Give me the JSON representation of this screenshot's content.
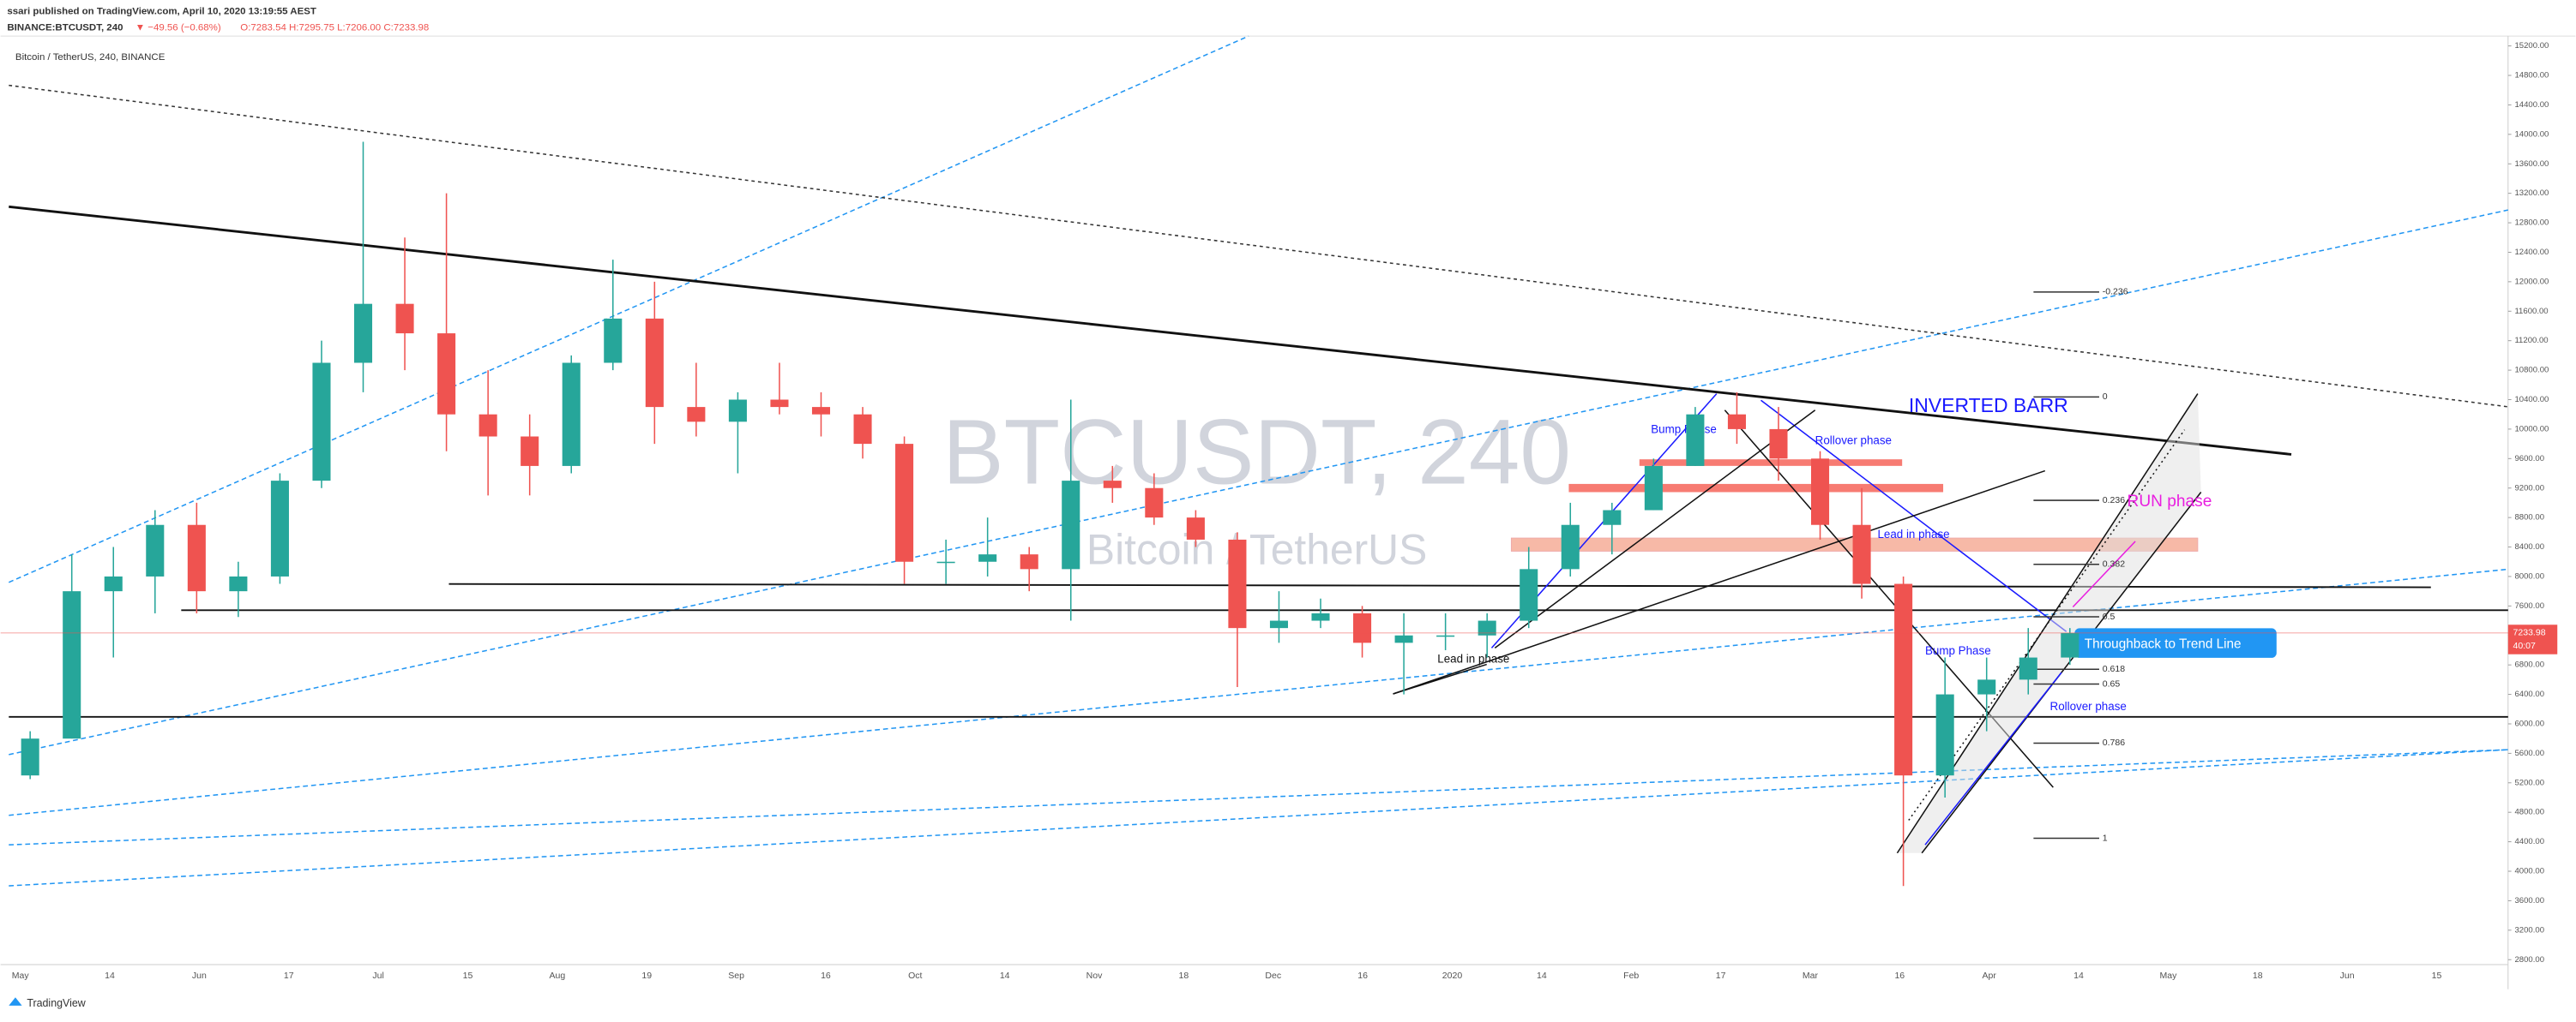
{
  "header": {
    "publisher": "ssari published on TradingView.com, April 10, 2020 13:19:55 AEST",
    "symbol": "BINANCE:BTCUSDT, 240",
    "change": "▼ −49.56 (−0.68%)",
    "ohlc": "O:7283.54 H:7295.75 L:7206.00 C:7233.98"
  },
  "chart_data": {
    "type": "candlestick",
    "title": "Bitcoin / TetherUS, 240, BINANCE",
    "watermark": "BTCUSDT, 240",
    "watermark_subtitle": "Bitcoin / TetherUS",
    "open": [
      5300,
      5800,
      7800,
      8000,
      8700,
      7800,
      8000,
      9300,
      10900,
      11700,
      11300,
      10200,
      9900,
      9500,
      10900,
      11500,
      10300,
      10100,
      10400,
      10300,
      10200,
      9800,
      8200,
      8200,
      8300,
      8100,
      9300,
      9200,
      8800,
      8500,
      7300,
      7400,
      7500,
      7100,
      7200,
      7200,
      7400,
      8100,
      8700,
      8900,
      9500,
      10200,
      10000,
      9600,
      8700,
      7900,
      5300,
      6400,
      6600,
      6900
    ],
    "high": [
      5900,
      8300,
      8400,
      8900,
      9000,
      8200,
      9400,
      11200,
      13900,
      12600,
      13200,
      10800,
      10200,
      11000,
      12300,
      12000,
      10900,
      10500,
      10900,
      10500,
      10300,
      9900,
      8500,
      8800,
      8400,
      10400,
      9500,
      9400,
      8900,
      8600,
      7800,
      7700,
      7600,
      7500,
      7500,
      7500,
      8400,
      9000,
      9000,
      9600,
      10300,
      10500,
      10300,
      9700,
      9200,
      8000,
      6900,
      6900,
      7300,
      7300
    ],
    "low": [
      5250,
      5800,
      6900,
      7500,
      7500,
      7450,
      7900,
      9200,
      10500,
      10800,
      9700,
      9100,
      9100,
      9400,
      10800,
      9800,
      9900,
      9400,
      10200,
      9900,
      9600,
      7900,
      7900,
      8000,
      7800,
      7400,
      9000,
      8700,
      8400,
      6500,
      7100,
      7300,
      6900,
      6400,
      7000,
      6900,
      7300,
      8000,
      8300,
      8900,
      9500,
      9800,
      9300,
      8500,
      7700,
      3800,
      5000,
      5900,
      6400,
      6800
    ],
    "close": [
      5800,
      7800,
      8000,
      8700,
      7800,
      8000,
      9300,
      10900,
      11700,
      11300,
      10200,
      9900,
      9500,
      10900,
      11500,
      10300,
      10100,
      10400,
      10300,
      10200,
      9800,
      8200,
      8200,
      8300,
      8100,
      9300,
      9200,
      8800,
      8500,
      7300,
      7400,
      7500,
      7100,
      7200,
      7200,
      7400,
      8100,
      8700,
      8900,
      9500,
      10200,
      10000,
      9600,
      8700,
      7900,
      5300,
      6400,
      6600,
      6900,
      7233.98
    ],
    "up_color": "#26a69a",
    "down_color": "#ef5350",
    "ylim": [
      2800,
      15200
    ],
    "yticks": [
      {
        "value": 2800,
        "label": "2800.00"
      },
      {
        "value": 3200,
        "label": "3200.00"
      },
      {
        "value": 3600,
        "label": "3600.00"
      },
      {
        "value": 4000,
        "label": "4000.00"
      },
      {
        "value": 4400,
        "label": "4400.00"
      },
      {
        "value": 4800,
        "label": "4800.00"
      },
      {
        "value": 5200,
        "label": "5200.00"
      },
      {
        "value": 5600,
        "label": "5600.00"
      },
      {
        "value": 6000,
        "label": "6000.00"
      },
      {
        "value": 6400,
        "label": "6400.00"
      },
      {
        "value": 6800,
        "label": "6800.00"
      },
      {
        "value": 7200,
        "label": "7200.00"
      },
      {
        "value": 7600,
        "label": "7600.00"
      },
      {
        "value": 8000,
        "label": "8000.00"
      },
      {
        "value": 8400,
        "label": "8400.00"
      },
      {
        "value": 8800,
        "label": "8800.00"
      },
      {
        "value": 9200,
        "label": "9200.00"
      },
      {
        "value": 9600,
        "label": "9600.00"
      },
      {
        "value": 10000,
        "label": "10000.00"
      },
      {
        "value": 10400,
        "label": "10400.00"
      },
      {
        "value": 10800,
        "label": "10800.00"
      },
      {
        "value": 11200,
        "label": "11200.00"
      },
      {
        "value": 11600,
        "label": "11600.00"
      },
      {
        "value": 12000,
        "label": "12000.00"
      },
      {
        "value": 12400,
        "label": "12400.00"
      },
      {
        "value": 12800,
        "label": "12800.00"
      },
      {
        "value": 13200,
        "label": "13200.00"
      },
      {
        "value": 13600,
        "label": "13600.00"
      },
      {
        "value": 14000,
        "label": "14000.00"
      },
      {
        "value": 14400,
        "label": "14400.00"
      },
      {
        "value": 14800,
        "label": "14800.00"
      },
      {
        "value": 15200,
        "label": "15200.00"
      }
    ],
    "xlabels": [
      "May",
      "14",
      "Jun",
      "17",
      "Jul",
      "15",
      "Aug",
      "19",
      "Sep",
      "16",
      "Oct",
      "14",
      "Nov",
      "18",
      "Dec",
      "16",
      "2020",
      "14",
      "Feb",
      "17",
      "Mar",
      "16",
      "Apr",
      "14",
      "May",
      "18",
      "Jun",
      "15"
    ],
    "last_price": 7233.98,
    "countdown": "40:07",
    "annotations": [
      "INVERTED BARR",
      "Bump Phase",
      "Rollover phase",
      "RUN phase",
      "Lead in phase",
      "Lead in phase",
      "Throughback  to Trend Line",
      "Bump Phase",
      "Rollover phase"
    ],
    "fib_labels": [
      "-0.236",
      "0",
      "0.236",
      "0.382",
      "0.5",
      "0.618",
      "0.65",
      "0.786",
      "1"
    ]
  },
  "footer": "TradingView"
}
